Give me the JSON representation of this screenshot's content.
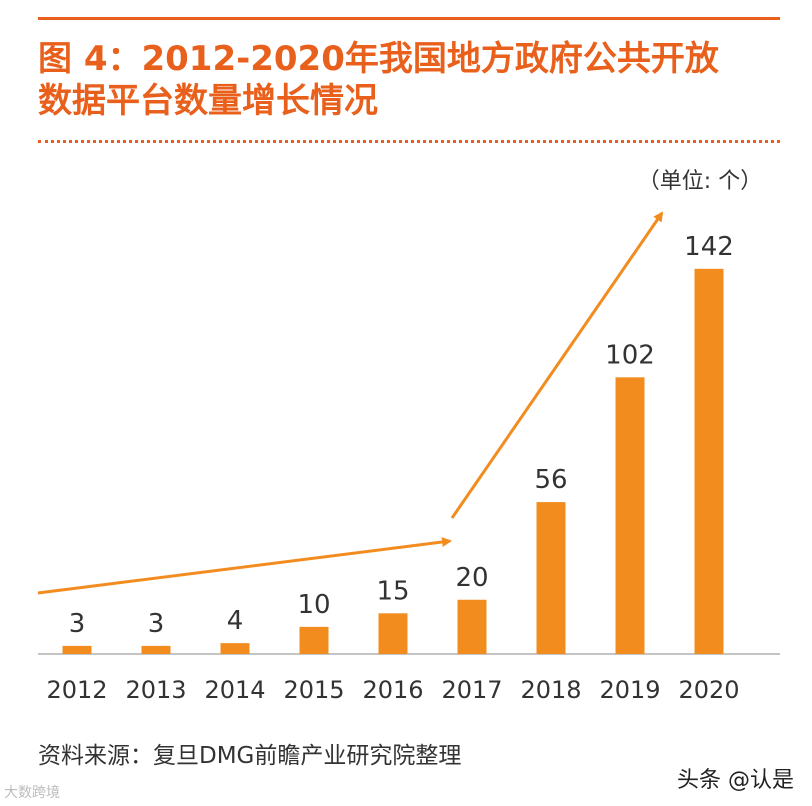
{
  "title_line1": "图 4：2012-2020年我国地方政府公共开放",
  "title_line2": "数据平台数量增长情况",
  "unit_label": "（单位: 个）",
  "source_text": "资料来源：复旦DMG前瞻产业研究院整理",
  "watermark_left": "大数跨境",
  "watermark_right": "头条 @认是",
  "colors": {
    "accent": "#E8601C",
    "bar": "#F28C1E",
    "text": "#333333"
  },
  "chart_data": {
    "type": "bar",
    "title": "2012-2020年我国地方政府公共开放数据平台数量增长情况",
    "xlabel": "",
    "ylabel": "（单位: 个）",
    "categories": [
      "2012",
      "2013",
      "2014",
      "2015",
      "2016",
      "2017",
      "2018",
      "2019",
      "2020"
    ],
    "values": [
      3,
      3,
      4,
      10,
      15,
      20,
      56,
      102,
      142
    ],
    "ylim": [
      0,
      160
    ],
    "grid": false,
    "annotations": [
      "trend-arrow 2012-2017",
      "trend-arrow 2017-2020"
    ]
  }
}
